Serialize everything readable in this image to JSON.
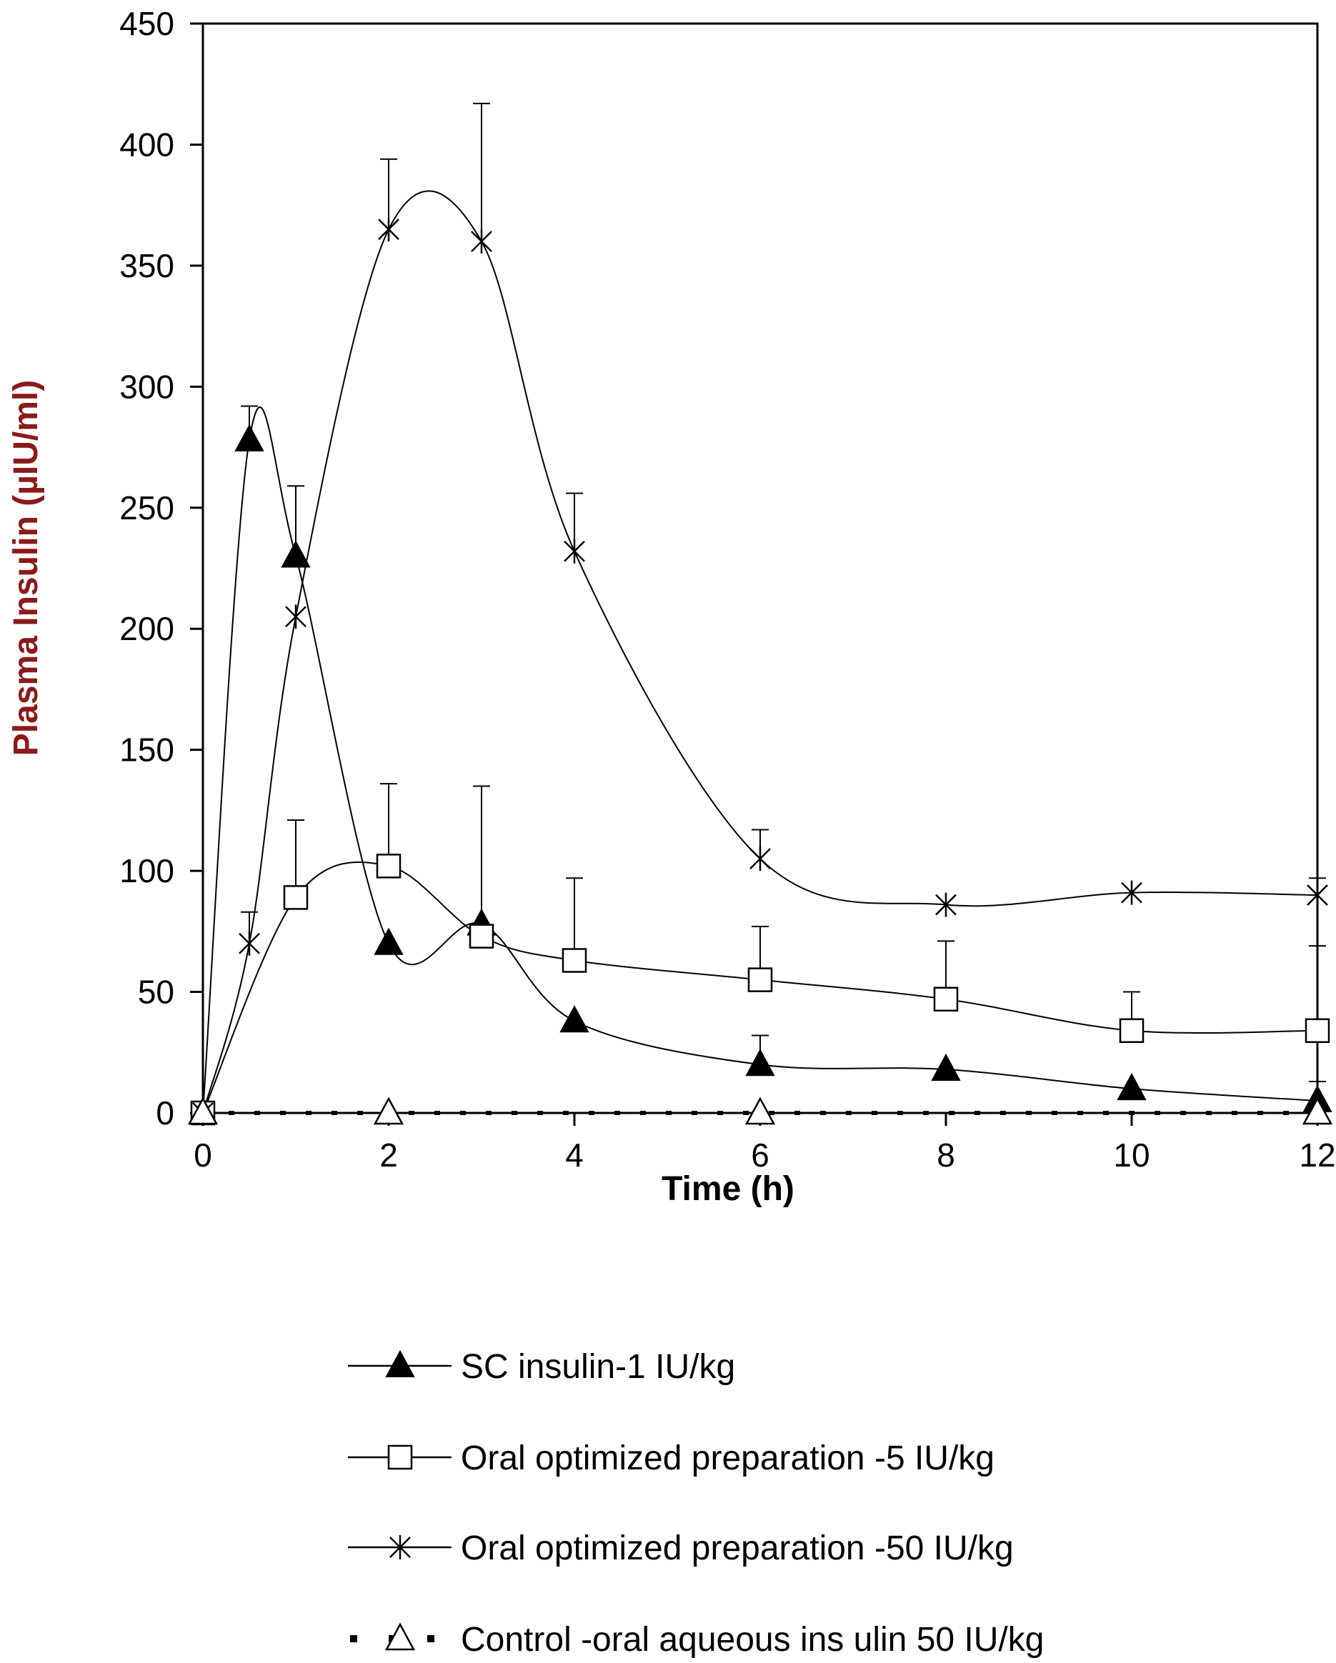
{
  "chart_data": {
    "type": "line",
    "title": "",
    "xlabel": "Time (h)",
    "ylabel": "Plasma Insulin (µIU/ml)",
    "ylabel_color": "#8B1A1A",
    "xlim": [
      0,
      12
    ],
    "ylim": [
      0,
      450
    ],
    "x_ticks": [
      0,
      2,
      4,
      6,
      8,
      10,
      12
    ],
    "y_ticks": [
      0,
      50,
      100,
      150,
      200,
      250,
      300,
      350,
      400,
      450
    ],
    "grid": false,
    "legend_position": "below",
    "series": [
      {
        "name": "SC  insulin-1 IU/kg",
        "marker": "filled-triangle",
        "line": "solid",
        "x": [
          0,
          0.5,
          1,
          2,
          3,
          4,
          6,
          8,
          10,
          12
        ],
        "y": [
          0,
          278,
          230,
          70,
          78,
          38,
          20,
          18,
          10,
          5
        ],
        "err": [
          0,
          14,
          29,
          0,
          0,
          0,
          12,
          0,
          0,
          8
        ]
      },
      {
        "name": "Oral  optimized preparation  -5 IU/kg",
        "marker": "open-square",
        "line": "solid",
        "x": [
          0,
          1,
          2,
          3,
          4,
          6,
          8,
          10,
          12
        ],
        "y": [
          0,
          89,
          102,
          73,
          63,
          55,
          47,
          34,
          34
        ],
        "err": [
          0,
          32,
          34,
          62,
          34,
          22,
          24,
          16,
          35
        ]
      },
      {
        "name": "Oral  optimized preparation  -50  IU/kg",
        "marker": "asterisk",
        "line": "solid",
        "x": [
          0,
          0.5,
          1,
          2,
          3,
          4,
          6,
          8,
          10,
          12
        ],
        "y": [
          0,
          70,
          205,
          365,
          360,
          232,
          105,
          86,
          91,
          90
        ],
        "err": [
          0,
          13,
          0,
          29,
          57,
          24,
          12,
          0,
          0,
          7
        ]
      },
      {
        "name": "Control  -oral aqueous  ins ulin 50 IU/kg",
        "marker": "open-triangle",
        "line": "dotted",
        "x": [
          0,
          2,
          6,
          12
        ],
        "y": [
          0,
          0,
          0,
          0
        ],
        "err": [
          0,
          0,
          0,
          0
        ]
      }
    ]
  }
}
